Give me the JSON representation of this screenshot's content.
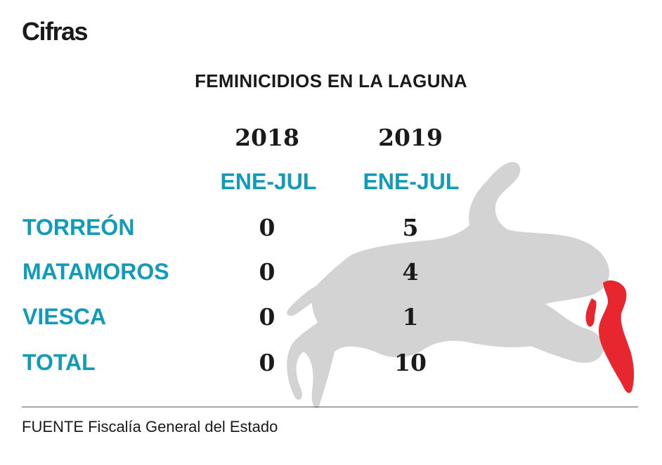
{
  "header": {
    "section": "Cifras"
  },
  "chart_data": {
    "type": "table",
    "title": "FEMINICIDIOS EN LA LAGUNA",
    "columns": [
      {
        "year": "2018",
        "period": "ENE-JUL"
      },
      {
        "year": "2019",
        "period": "ENE-JUL"
      }
    ],
    "rows": [
      {
        "label": "TORREÓN",
        "values": [
          "0",
          "5"
        ]
      },
      {
        "label": "MATAMOROS",
        "values": [
          "0",
          "4"
        ]
      },
      {
        "label": "VIESCA",
        "values": [
          "0",
          "1"
        ]
      },
      {
        "label": "TOTAL",
        "values": [
          "0",
          "10"
        ]
      }
    ]
  },
  "footer": {
    "source": "FUENTE Fiscalía General del Estado"
  },
  "colors": {
    "accent": "#129bb8",
    "silhouette": "#d3d3d3",
    "blood": "#e8262f",
    "text": "#1a1a1a"
  },
  "icons": {
    "illustration": "body-silhouette-icon"
  }
}
